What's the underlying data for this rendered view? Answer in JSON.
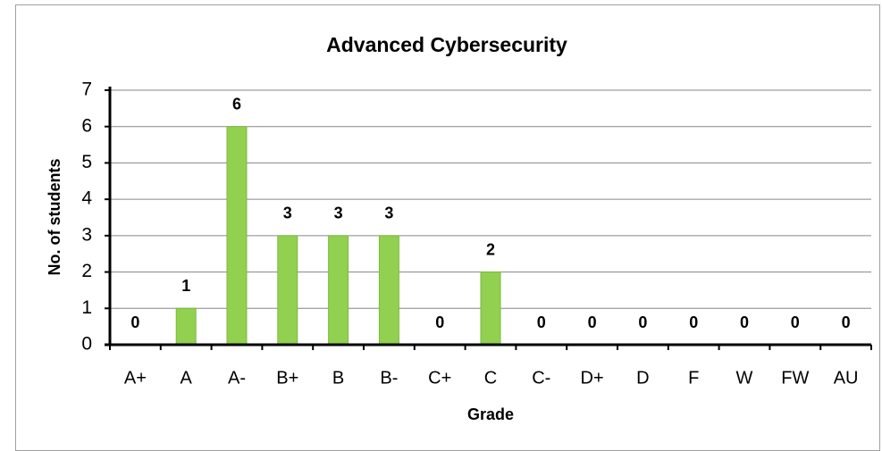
{
  "chart_data": {
    "type": "bar",
    "title": "Advanced Cybersecurity",
    "x_label": "Grade",
    "y_label": "No. of students",
    "categories": [
      "A+",
      "A",
      "A-",
      "B+",
      "B",
      "B-",
      "C+",
      "C",
      "C-",
      "D+",
      "D",
      "F",
      "W",
      "FW",
      "AU"
    ],
    "values": [
      0,
      1,
      6,
      3,
      3,
      3,
      0,
      2,
      0,
      0,
      0,
      0,
      0,
      0,
      0
    ],
    "color": "#92d050",
    "ylim": [
      0,
      7
    ],
    "yticks": [
      0,
      1,
      2,
      3,
      4,
      5,
      6,
      7
    ],
    "grid": true
  }
}
